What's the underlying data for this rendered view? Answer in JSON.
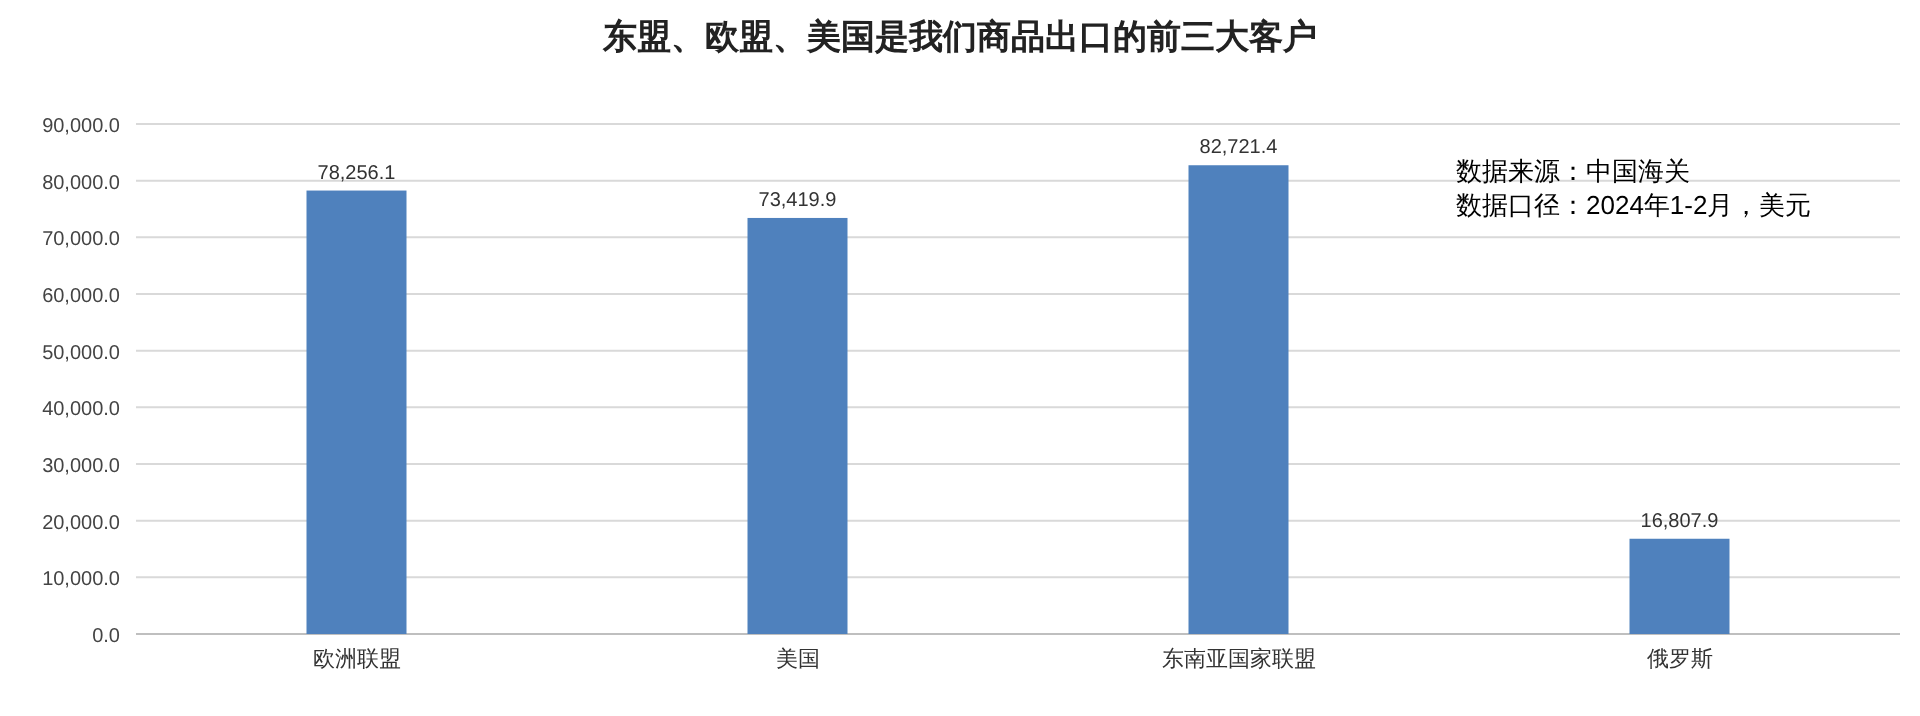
{
  "chart_data": {
    "type": "bar",
    "title": "东盟、欧盟、美国是我们商品出口的前三大客户",
    "categories": [
      "欧洲联盟",
      "美国",
      "东南亚国家联盟",
      "俄罗斯"
    ],
    "values": [
      78256.1,
      73419.9,
      82721.4,
      16807.9
    ],
    "value_labels": [
      "78,256.1",
      "73,419.9",
      "82,721.4",
      "16,807.9"
    ],
    "color": "#4f81bd",
    "ylim": [
      0,
      90000
    ],
    "yticks": [
      {
        "value": 0,
        "label": "0.0"
      },
      {
        "value": 10000,
        "label": "10,000.0"
      },
      {
        "value": 20000,
        "label": "20,000.0"
      },
      {
        "value": 30000,
        "label": "30,000.0"
      },
      {
        "value": 40000,
        "label": "40,000.0"
      },
      {
        "value": 50000,
        "label": "50,000.0"
      },
      {
        "value": 60000,
        "label": "60,000.0"
      },
      {
        "value": 70000,
        "label": "70,000.0"
      },
      {
        "value": 80000,
        "label": "80,000.0"
      },
      {
        "value": 90000,
        "label": "90,000.0"
      }
    ],
    "grid": "y",
    "annotations": [
      "数据来源：中国海关",
      "数据口径：2024年1-2月，美元"
    ]
  }
}
